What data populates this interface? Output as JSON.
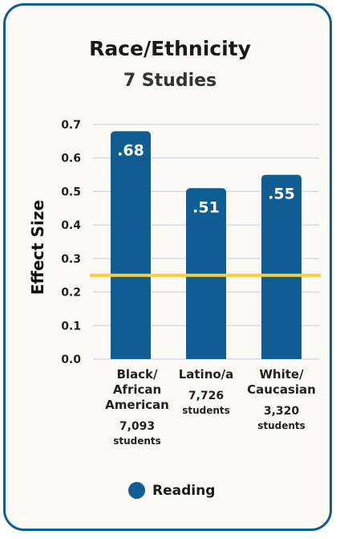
{
  "chart_data": {
    "type": "bar",
    "title": "Race/Ethnicity",
    "subtitle": "7 Studies",
    "ylabel": "Effect Size",
    "xlabel": "",
    "ylim": [
      0,
      0.7
    ],
    "yticks": [
      "0.0",
      "0.1",
      "0.2",
      "0.3",
      "0.4",
      "0.5",
      "0.6",
      "0.7"
    ],
    "grid": true,
    "categories": [
      "Black/ African American",
      "Latino/a",
      "White/ Caucasian"
    ],
    "category_lines": [
      [
        "Black/",
        "African",
        "American"
      ],
      [
        "Latino/a"
      ],
      [
        "White/",
        "Caucasian"
      ]
    ],
    "sample_sizes": [
      "7,093",
      "7,726",
      "3,320"
    ],
    "sample_unit": "students",
    "series": [
      {
        "name": "Reading",
        "values": [
          0.68,
          0.51,
          0.55
        ],
        "labels": [
          ".68",
          ".51",
          ".55"
        ]
      }
    ],
    "reference_line": 0.25,
    "legend_position": "bottom",
    "colors": {
      "bar": "#0f5d92",
      "reference": "#f5cf3c",
      "grid": "#c9cbe4",
      "border": "#0f5d92"
    }
  }
}
